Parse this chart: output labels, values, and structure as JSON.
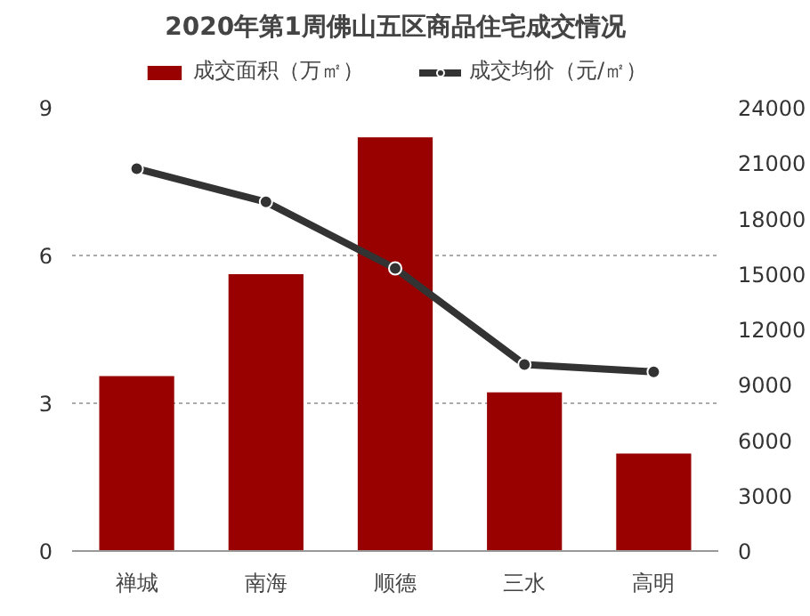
{
  "chart_data": {
    "type": "bar",
    "title": "2020年第1周佛山五区商品住宅成交情况",
    "categories": [
      "禅城",
      "南海",
      "顺德",
      "三水",
      "高明"
    ],
    "series": [
      {
        "name": "成交面积（万㎡）",
        "color": "#990000",
        "values": [
          3.55,
          5.62,
          8.4,
          3.22,
          1.98
        ]
      },
      {
        "name": "成交均价（元/㎡）",
        "color": "#333333",
        "type": "line",
        "axis": "y2",
        "marker": "circle",
        "values": [
          20700,
          18900,
          15300,
          10100,
          9700
        ]
      }
    ],
    "ylim": [
      0,
      9
    ],
    "yticks": [
      0,
      3,
      6,
      9
    ],
    "y2lim": [
      0,
      24000
    ],
    "y2ticks": [
      0,
      3000,
      6000,
      9000,
      12000,
      15000,
      18000,
      21000,
      24000
    ],
    "grid": "y",
    "legend": "top"
  }
}
